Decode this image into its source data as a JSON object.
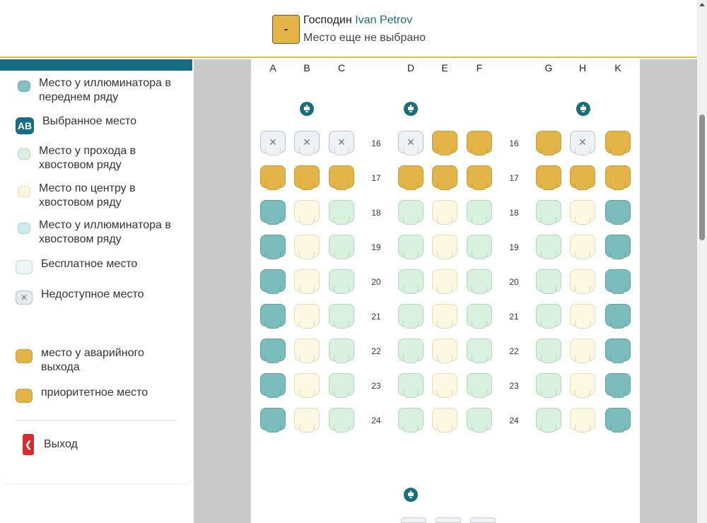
{
  "header": {
    "seat_chip": "-",
    "passenger_prefix": "Господин",
    "passenger_name": "Ivan Petrov",
    "seat_status": "Место еще не выбрано"
  },
  "legend": [
    {
      "label": "Место у иллюминатора в переднем ряду",
      "icon": "front-window-seat-icon"
    },
    {
      "label": "Выбранное место",
      "icon": "selected-seat-icon",
      "badge": "AB"
    },
    {
      "label": "Место у прохода в хвостовом ряду",
      "icon": "aisle-tail-seat-icon"
    },
    {
      "label": "Место по центру в хвостовом ряду",
      "icon": "center-tail-seat-icon"
    },
    {
      "label": "Место у иллюминатора в хвостовом ряду",
      "icon": "window-tail-seat-icon"
    },
    {
      "label": "Бесплатное место",
      "icon": "free-seat-icon"
    },
    {
      "label": "Недоступное место",
      "icon": "unavailable-seat-icon",
      "badge": "✕"
    },
    {
      "label": "место у аварийного выхода",
      "icon": "exit-row-seat-icon"
    },
    {
      "label": "приоритетное место",
      "icon": "priority-seat-icon"
    }
  ],
  "logout_label": "Выход",
  "columns": [
    "A",
    "B",
    "C",
    "D",
    "E",
    "F",
    "G",
    "H",
    "K"
  ],
  "rows": [
    "16",
    "17",
    "18",
    "19",
    "20",
    "21",
    "22",
    "23",
    "24"
  ],
  "seat_types": {
    "16": [
      "unavail",
      "unavail",
      "unavail",
      "unavail",
      "priority",
      "priority",
      "priority",
      "unavail",
      "priority"
    ],
    "17": [
      "priority",
      "priority",
      "priority",
      "priority",
      "priority",
      "priority",
      "priority",
      "priority",
      "priority"
    ],
    "18": [
      "window",
      "center",
      "aisle",
      "aisle",
      "center",
      "aisle",
      "aisle",
      "center",
      "window"
    ],
    "19": [
      "window",
      "center",
      "aisle",
      "aisle",
      "center",
      "aisle",
      "aisle",
      "center",
      "window"
    ],
    "20": [
      "window",
      "center",
      "aisle",
      "aisle",
      "center",
      "aisle",
      "aisle",
      "center",
      "window"
    ],
    "21": [
      "window",
      "center",
      "aisle",
      "aisle",
      "center",
      "aisle",
      "aisle",
      "center",
      "window"
    ],
    "22": [
      "window",
      "center",
      "aisle",
      "aisle",
      "center",
      "aisle",
      "aisle",
      "center",
      "window"
    ],
    "23": [
      "window",
      "center",
      "aisle",
      "aisle",
      "center",
      "aisle",
      "aisle",
      "center",
      "window"
    ],
    "24": [
      "window",
      "center",
      "aisle",
      "aisle",
      "center",
      "aisle",
      "aisle",
      "center",
      "window"
    ]
  },
  "unavailable_mark": "✕",
  "colors": {
    "accent": "#176b82",
    "priority": "#e3b447",
    "window": "#7bbcbc",
    "aisle": "#d9f1df",
    "center": "#fcf8e2",
    "logout": "#d92b2b"
  }
}
